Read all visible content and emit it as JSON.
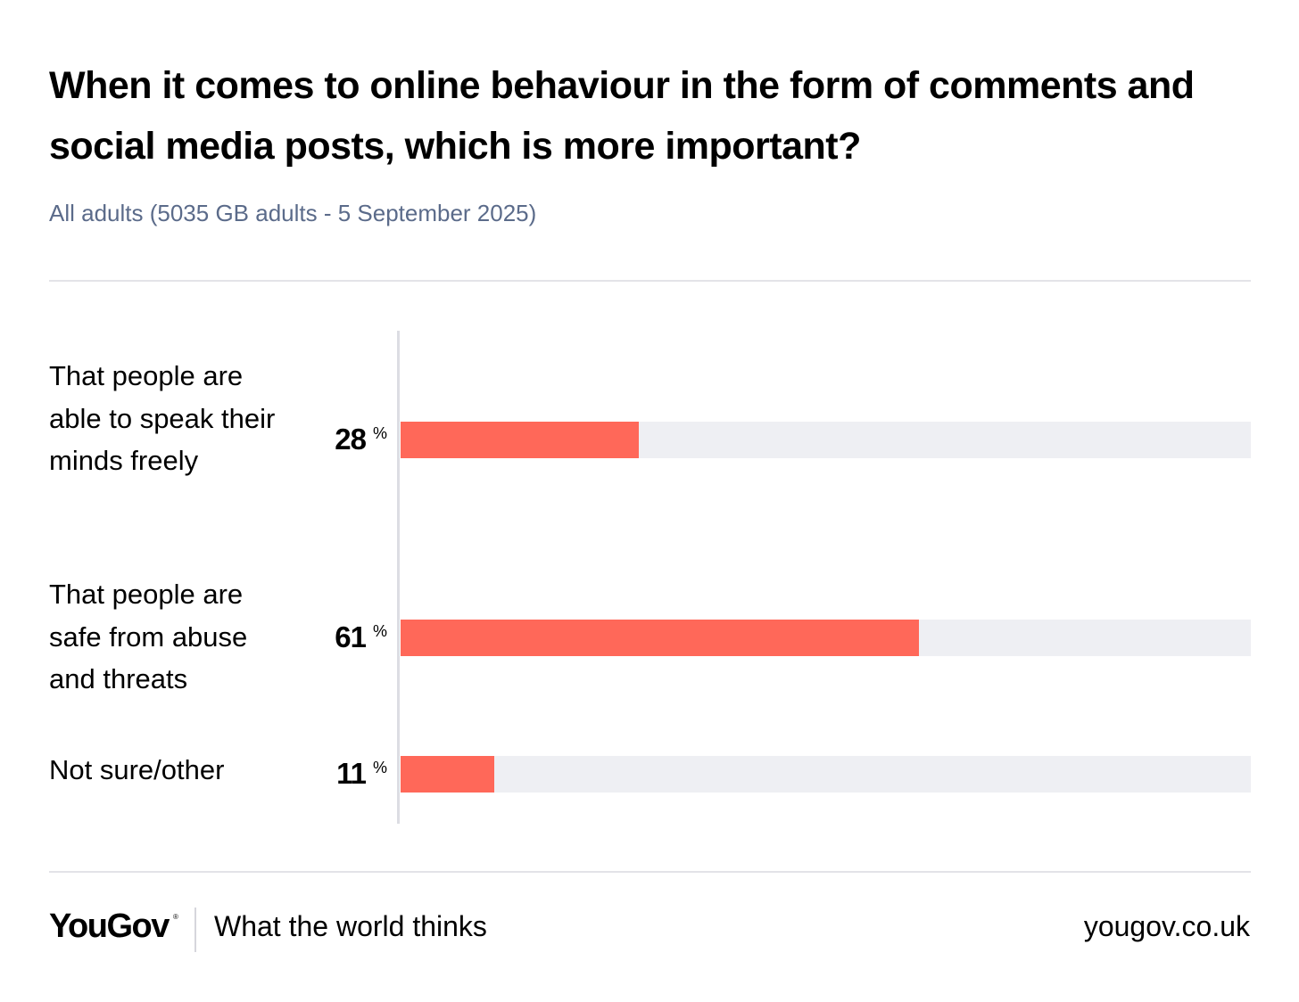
{
  "header": {
    "title": "When it comes to online behaviour in the form of comments and social media posts, which is more important?",
    "subtitle": "All adults (5035 GB adults - 5 September 2025)"
  },
  "chart_data": {
    "type": "bar",
    "orientation": "horizontal",
    "categories": [
      "That people are able to speak their minds freely",
      "That people are safe from abuse and threats",
      "Not sure/other"
    ],
    "values": [
      28,
      61,
      11
    ],
    "value_suffix": "%",
    "xlim": [
      0,
      100
    ],
    "grid": false,
    "bar_color": "#ff6859",
    "track_color": "#eeeff3"
  },
  "footer": {
    "brand": "YouGov",
    "brand_mark": "®",
    "tagline": "What the world thinks",
    "url": "yougov.co.uk"
  }
}
